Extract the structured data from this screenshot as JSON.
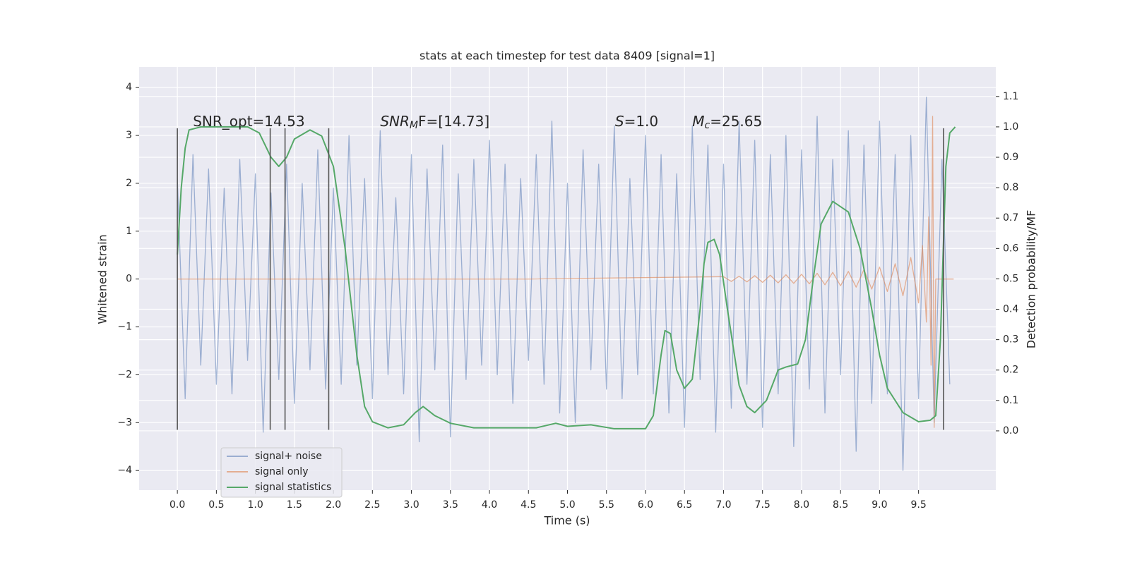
{
  "chart_data": {
    "type": "line",
    "title": "stats at each timestep for test data 8409 [signal=1]",
    "xlabel": "Time (s)",
    "ylabel": "Whitened strain",
    "y2label": "Detection probability/MF",
    "xlim": [
      -0.49,
      10.49
    ],
    "ylim": [
      -4.41,
      4.43
    ],
    "y2lim": [
      -0.195,
      1.197
    ],
    "xticks": [
      {
        "value": 0,
        "label": "0.0"
      },
      {
        "value": 0.5,
        "label": "0.5"
      },
      {
        "value": 1,
        "label": "1.0"
      },
      {
        "value": 1.5,
        "label": "1.5"
      },
      {
        "value": 2,
        "label": "2.0"
      },
      {
        "value": 2.5,
        "label": "2.5"
      },
      {
        "value": 3,
        "label": "3.0"
      },
      {
        "value": 3.5,
        "label": "3.5"
      },
      {
        "value": 4,
        "label": "4.0"
      },
      {
        "value": 4.5,
        "label": "4.5"
      },
      {
        "value": 5,
        "label": "5.0"
      },
      {
        "value": 5.5,
        "label": "5.5"
      },
      {
        "value": 6,
        "label": "6.0"
      },
      {
        "value": 6.5,
        "label": "6.5"
      },
      {
        "value": 7,
        "label": "7.0"
      },
      {
        "value": 7.5,
        "label": "7.5"
      },
      {
        "value": 8,
        "label": "8.0"
      },
      {
        "value": 8.5,
        "label": "8.5"
      },
      {
        "value": 9,
        "label": "9.0"
      },
      {
        "value": 9.5,
        "label": "9.5"
      }
    ],
    "yticks": [
      {
        "value": -4,
        "label": "−4"
      },
      {
        "value": -3,
        "label": "−3"
      },
      {
        "value": -2,
        "label": "−2"
      },
      {
        "value": -1,
        "label": "−1"
      },
      0,
      1,
      2,
      3,
      4
    ],
    "y2ticks": [
      {
        "value": 0,
        "label": "0.0"
      },
      {
        "value": 0.1,
        "label": "0.1"
      },
      {
        "value": 0.2,
        "label": "0.2"
      },
      {
        "value": 0.3,
        "label": "0.3"
      },
      {
        "value": 0.4,
        "label": "0.4"
      },
      {
        "value": 0.5,
        "label": "0.5"
      },
      {
        "value": 0.6,
        "label": "0.6"
      },
      {
        "value": 0.7,
        "label": "0.7"
      },
      {
        "value": 0.8,
        "label": "0.8"
      },
      {
        "value": 0.9,
        "label": "0.9"
      },
      {
        "value": 1,
        "label": "1.0"
      },
      {
        "value": 1.1,
        "label": "1.1"
      }
    ],
    "grid": true,
    "legend": "lower left",
    "series": [
      {
        "name": "signal+ noise",
        "color": "#4c72b0",
        "alpha": 0.5,
        "x": [
          0,
          0.1,
          0.2,
          0.3,
          0.4,
          0.5,
          0.6,
          0.7,
          0.8,
          0.9,
          1,
          1.1,
          1.2,
          1.3,
          1.4,
          1.5,
          1.6,
          1.7,
          1.8,
          1.9,
          2,
          2.1,
          2.2,
          2.3,
          2.4,
          2.5,
          2.6,
          2.7,
          2.8,
          2.9,
          3,
          3.1,
          3.2,
          3.3,
          3.4,
          3.5,
          3.6,
          3.7,
          3.8,
          3.9,
          4,
          4.1,
          4.2,
          4.3,
          4.4,
          4.5,
          4.6,
          4.7,
          4.8,
          4.9,
          5,
          5.1,
          5.2,
          5.3,
          5.4,
          5.5,
          5.6,
          5.7,
          5.8,
          5.9,
          6,
          6.1,
          6.2,
          6.3,
          6.4,
          6.5,
          6.6,
          6.7,
          6.8,
          6.9,
          7,
          7.1,
          7.2,
          7.3,
          7.4,
          7.5,
          7.6,
          7.7,
          7.8,
          7.9,
          8,
          8.1,
          8.2,
          8.3,
          8.4,
          8.5,
          8.6,
          8.7,
          8.8,
          8.9,
          9,
          9.1,
          9.2,
          9.3,
          9.4,
          9.5,
          9.6,
          9.7,
          9.8,
          9.9
        ],
        "values": [
          2.1,
          -2.5,
          2.6,
          -1.8,
          2.3,
          -2.2,
          1.9,
          -2.4,
          2.5,
          -1.7,
          2.2,
          -3.2,
          1.8,
          -2.1,
          2.4,
          -2.6,
          2.0,
          -1.9,
          2.7,
          -2.3,
          1.9,
          -2.2,
          3.0,
          -1.8,
          2.1,
          -2.5,
          3.1,
          -2.0,
          1.7,
          -2.4,
          2.6,
          -3.4,
          2.3,
          -1.9,
          2.8,
          -3.3,
          2.2,
          -2.1,
          2.5,
          -1.8,
          2.9,
          -2.0,
          2.4,
          -2.6,
          2.1,
          -1.7,
          2.6,
          -2.2,
          3.3,
          -2.8,
          2.0,
          -3.0,
          2.7,
          -1.9,
          2.4,
          -2.3,
          3.2,
          -2.5,
          2.1,
          -2.0,
          3.0,
          -2.4,
          2.6,
          -2.8,
          2.2,
          -3.1,
          3.2,
          -2.1,
          2.8,
          -3.2,
          2.4,
          -2.7,
          3.3,
          -2.2,
          2.9,
          -3.1,
          2.6,
          -2.4,
          3.0,
          -3.5,
          2.7,
          -2.3,
          3.4,
          -2.8,
          2.5,
          -2.0,
          3.1,
          -3.6,
          2.8,
          -2.6,
          3.3,
          -2.4,
          2.6,
          -4.0,
          3.0,
          -2.5,
          3.8,
          -3.0,
          2.5,
          -2.2
        ]
      },
      {
        "name": "signal only",
        "color": "#dd8452",
        "alpha": 0.6,
        "x": [
          0,
          4.5,
          7,
          7.1,
          7.2,
          7.3,
          7.4,
          7.5,
          7.6,
          7.7,
          7.8,
          7.9,
          8,
          8.1,
          8.2,
          8.3,
          8.4,
          8.5,
          8.6,
          8.7,
          8.8,
          8.9,
          9,
          9.1,
          9.2,
          9.3,
          9.4,
          9.5,
          9.55,
          9.6,
          9.63,
          9.66,
          9.68,
          9.7,
          9.72,
          9.8,
          9.95
        ],
        "values": [
          0,
          0,
          0.05,
          -0.05,
          0.06,
          -0.06,
          0.07,
          -0.07,
          0.08,
          -0.08,
          0.09,
          -0.09,
          0.1,
          -0.1,
          0.12,
          -0.12,
          0.14,
          -0.14,
          0.16,
          -0.17,
          0.2,
          -0.21,
          0.25,
          -0.26,
          0.32,
          -0.35,
          0.45,
          -0.5,
          0.7,
          -0.9,
          1.3,
          -1.8,
          3.4,
          -3.1,
          0,
          0,
          0
        ]
      },
      {
        "name": "signal statistics",
        "color": "#55a868",
        "alpha": 1,
        "axis": "y2",
        "x": [
          0,
          0.05,
          0.1,
          0.15,
          0.3,
          0.6,
          0.9,
          1.05,
          1.2,
          1.3,
          1.4,
          1.5,
          1.7,
          1.85,
          2,
          2.15,
          2.3,
          2.4,
          2.5,
          2.7,
          2.9,
          3.05,
          3.15,
          3.3,
          3.5,
          3.8,
          4.2,
          4.6,
          4.85,
          5,
          5.3,
          5.6,
          6,
          6.1,
          6.2,
          6.25,
          6.32,
          6.4,
          6.5,
          6.6,
          6.7,
          6.75,
          6.8,
          6.88,
          6.95,
          7.05,
          7.2,
          7.3,
          7.4,
          7.55,
          7.7,
          7.8,
          7.95,
          8.05,
          8.15,
          8.25,
          8.4,
          8.6,
          8.75,
          8.9,
          9,
          9.1,
          9.3,
          9.5,
          9.65,
          9.72,
          9.78,
          9.85,
          9.9,
          9.97
        ],
        "values": [
          0.58,
          0.8,
          0.93,
          0.99,
          1,
          1,
          1,
          0.98,
          0.9,
          0.87,
          0.9,
          0.96,
          0.99,
          0.97,
          0.87,
          0.6,
          0.25,
          0.08,
          0.03,
          0.01,
          0.02,
          0.06,
          0.08,
          0.05,
          0.025,
          0.01,
          0.01,
          0.01,
          0.025,
          0.015,
          0.02,
          0.007,
          0.007,
          0.05,
          0.25,
          0.33,
          0.32,
          0.2,
          0.14,
          0.17,
          0.4,
          0.55,
          0.62,
          0.63,
          0.58,
          0.4,
          0.15,
          0.08,
          0.06,
          0.1,
          0.2,
          0.21,
          0.22,
          0.3,
          0.5,
          0.68,
          0.755,
          0.72,
          0.6,
          0.4,
          0.25,
          0.14,
          0.06,
          0.03,
          0.035,
          0.05,
          0.3,
          0.87,
          0.98,
          1
        ]
      }
    ],
    "vlines": {
      "x": [
        0,
        1.19,
        1.38,
        1.94,
        9.82
      ],
      "ymin": -3.15,
      "ymax": 3.15,
      "color": "#555555"
    },
    "annotations": [
      {
        "text": "SNR_opt=14.53",
        "x": 0.2,
        "y": 3.28
      },
      {
        "text": "SNR",
        "sub": "M",
        "rest": "F=[14.73]",
        "x": 2.6,
        "y": 3.28,
        "italic": true
      },
      {
        "text": "S",
        "rest": "=1.0",
        "x": 5.61,
        "y": 3.28,
        "italic": true
      },
      {
        "text": "M",
        "sub": "c",
        "rest": "=25.65",
        "x": 6.6,
        "y": 3.28,
        "italic": true
      }
    ]
  }
}
